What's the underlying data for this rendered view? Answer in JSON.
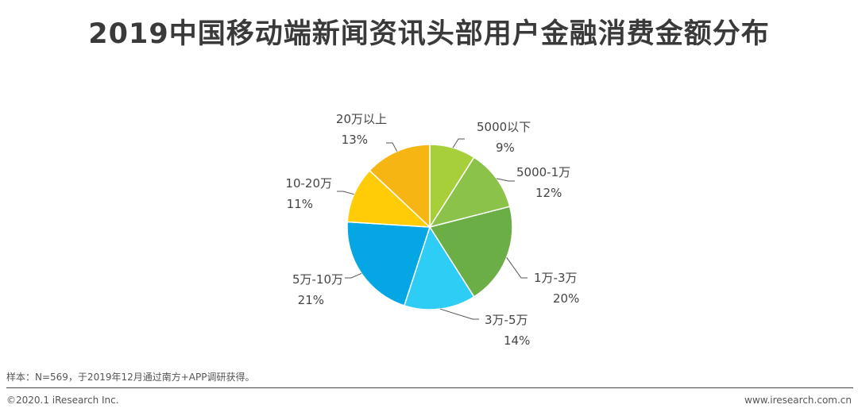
{
  "header": {
    "title": "2019中国移动端新闻资讯头部用户金融消费金额分布"
  },
  "chart_data": {
    "type": "pie",
    "title": "2019中国移动端新闻资讯头部用户金融消费金额分布",
    "unit": "%",
    "slices": [
      {
        "label": "5000以下",
        "value": 9,
        "display": "9%",
        "color": "#A7CF3A"
      },
      {
        "label": "5000-1万",
        "value": 12,
        "display": "12%",
        "color": "#8BC34A"
      },
      {
        "label": "1万-3万",
        "value": 20,
        "display": "20%",
        "color": "#6AAE45"
      },
      {
        "label": "3万-5万",
        "value": 14,
        "display": "14%",
        "color": "#2ECDF5"
      },
      {
        "label": "5万-10万",
        "value": 21,
        "display": "21%",
        "color": "#04A7E3"
      },
      {
        "label": "10-20万",
        "value": 11,
        "display": "11%",
        "color": "#FFCC07"
      },
      {
        "label": "20万以上",
        "value": 13,
        "display": "13%",
        "color": "#F7B513"
      }
    ]
  },
  "footer": {
    "note": "样本：N=569，于2019年12月通过南方+APP调研获得。",
    "copyright": "©2020.1 iResearch Inc.",
    "website": "www.iresearch.com.cn"
  }
}
